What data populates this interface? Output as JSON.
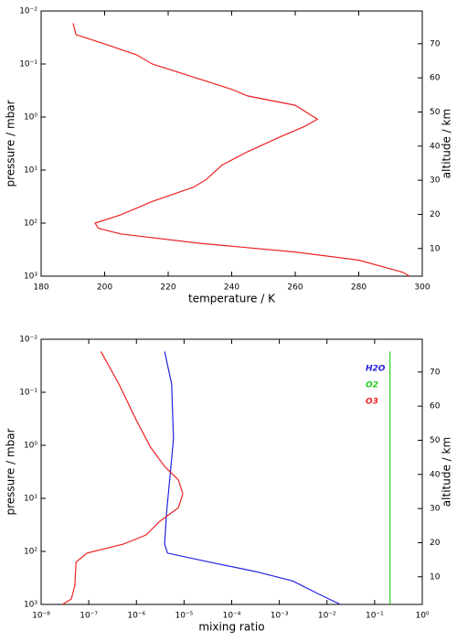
{
  "chart_data": [
    {
      "type": "line",
      "xlabel": "temperature / K",
      "ylabel": "pressure / mbar",
      "y2label": "altitude / km",
      "xscale": "linear",
      "yscale": "log",
      "xlim": [
        180,
        300
      ],
      "xticks": [
        180,
        200,
        220,
        240,
        260,
        280,
        300
      ],
      "ylim": [
        1000,
        0.01
      ],
      "yticks": [
        {
          "value": 0.01,
          "label": "10⁻²"
        },
        {
          "value": 0.1,
          "label": "10⁻¹"
        },
        {
          "value": 1,
          "label": "10⁰"
        },
        {
          "value": 10,
          "label": "10¹"
        },
        {
          "value": 100,
          "label": "10²"
        },
        {
          "value": 1000,
          "label": "10³"
        }
      ],
      "y2lim": [
        1.9,
        79.6
      ],
      "y2ticks": [
        10,
        20,
        30,
        40,
        50,
        60,
        70
      ],
      "series": [
        {
          "color": "#ee2222",
          "x": [
            190,
            191,
            200,
            210,
            215,
            240,
            245,
            260,
            267,
            263,
            255,
            245,
            237,
            232,
            228,
            215,
            205,
            197,
            198,
            205,
            230,
            260,
            280,
            290,
            294,
            296
          ],
          "y": [
            0.017,
            0.028,
            0.042,
            0.067,
            0.1,
            0.3,
            0.4,
            0.6,
            1.1,
            1.5,
            2.4,
            4.5,
            8,
            15,
            21,
            39,
            70,
            100,
            125,
            160,
            240,
            350,
            500,
            730,
            850,
            1000
          ]
        }
      ]
    },
    {
      "type": "line",
      "xlabel": "mixing ratio",
      "ylabel": "pressure / mbar",
      "y2label": "altitude / km",
      "xscale": "log",
      "yscale": "log",
      "xlim": [
        1e-08,
        1
      ],
      "xticks": [
        {
          "value": 1e-08,
          "label": "10⁻⁸"
        },
        {
          "value": 1e-07,
          "label": "10⁻⁷"
        },
        {
          "value": 1e-06,
          "label": "10⁻⁶"
        },
        {
          "value": 1e-05,
          "label": "10⁻⁵"
        },
        {
          "value": 0.0001,
          "label": "10⁻⁴"
        },
        {
          "value": 0.001,
          "label": "10⁻³"
        },
        {
          "value": 0.01,
          "label": "10⁻²"
        },
        {
          "value": 0.1,
          "label": "10⁻¹"
        },
        {
          "value": 1,
          "label": "10⁰"
        }
      ],
      "ylim": [
        1000,
        0.01
      ],
      "yticks": [
        {
          "value": 0.01,
          "label": "10⁻²"
        },
        {
          "value": 0.1,
          "label": "10⁻¹"
        },
        {
          "value": 1,
          "label": "10⁰"
        },
        {
          "value": 10,
          "label": "10¹"
        },
        {
          "value": 100,
          "label": "10²"
        },
        {
          "value": 1000,
          "label": "10³"
        }
      ],
      "y2lim": [
        1.9,
        79.6
      ],
      "y2ticks": [
        10,
        20,
        30,
        40,
        50,
        60,
        70
      ],
      "legend": "top-right",
      "series": [
        {
          "name": "H2O",
          "color": "#2222dd",
          "x": [
            3.9e-06,
            5.5e-06,
            6e-06,
            5.1e-06,
            4.3e-06,
            3.9e-06,
            4.5e-06,
            3.5e-05,
            0.00032,
            0.0019,
            0.007,
            0.019
          ],
          "y": [
            0.017,
            0.07,
            0.76,
            3.7,
            18,
            73,
            108,
            160,
            240,
            360,
            650,
            1000
          ]
        },
        {
          "name": "O2",
          "color": "#22cc22",
          "x": [
            0.21,
            0.21
          ],
          "y": [
            0.017,
            1000
          ]
        },
        {
          "name": "O3",
          "color": "#ee2222",
          "x": [
            1.8e-07,
            4.3e-07,
            1e-06,
            2e-06,
            3.9e-06,
            7.6e-06,
            9.4e-06,
            7.6e-06,
            3.1e-06,
            1.6e-06,
            5.3e-07,
            9.1e-08,
            5.4e-08,
            5.1e-08,
            4.3e-08,
            2.8e-08
          ],
          "y": [
            0.017,
            0.07,
            0.34,
            1.1,
            2.5,
            4.5,
            8.2,
            15,
            27,
            49,
            73,
            108,
            160,
            440,
            790,
            1000
          ]
        }
      ]
    }
  ]
}
